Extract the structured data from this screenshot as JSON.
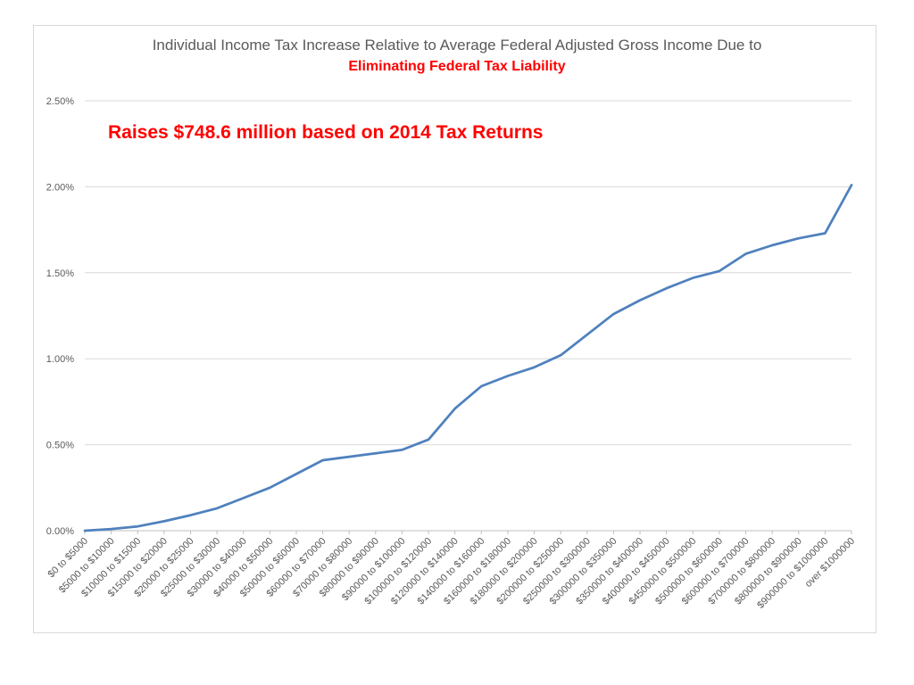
{
  "chart_data": {
    "type": "line",
    "title": "Individual Income Tax Increase Relative to Average Federal Adjusted Gross Income Due to",
    "subtitle": "Eliminating Federal Tax Liability",
    "annotation": "Raises $748.6 million based on 2014 Tax Returns",
    "xlabel": "",
    "ylabel": "",
    "ylim": [
      0,
      0.025
    ],
    "yticks": [
      {
        "value": 0.0,
        "label": "0.00%"
      },
      {
        "value": 0.005,
        "label": "0.50%"
      },
      {
        "value": 0.01,
        "label": "1.00%"
      },
      {
        "value": 0.015,
        "label": "1.50%"
      },
      {
        "value": 0.02,
        "label": "2.00%"
      },
      {
        "value": 0.025,
        "label": "2.50%"
      }
    ],
    "grid": true,
    "legend": "none",
    "series_color": "#4f81bd",
    "categories": [
      "$0 to $5000",
      "$5000 to $10000",
      "$10000 to $15000",
      "$15000 to $20000",
      "$20000 to $25000",
      "$25000 to $30000",
      "$30000 to $40000",
      "$40000 to $50000",
      "$50000 to $60000",
      "$60000 to $70000",
      "$70000 to $80000",
      "$80000 to $90000",
      "$90000 to $100000",
      "$100000 to $120000",
      "$120000 to $140000",
      "$140000 to $160000",
      "$160000 to $180000",
      "$180000 to $200000",
      "$200000 to $250000",
      "$250000 to $300000",
      "$300000 to $350000",
      "$350000 to $400000",
      "$400000 to $450000",
      "$450000 to $500000",
      "$500000 to $600000",
      "$600000 to $700000",
      "$700000 to $800000",
      "$800000 to $900000",
      "$900000 to $1000000",
      "over $1000000"
    ],
    "values": [
      0.0,
      0.0001,
      0.00025,
      0.00055,
      0.0009,
      0.0013,
      0.0019,
      0.0025,
      0.0033,
      0.0041,
      0.0043,
      0.0045,
      0.0047,
      0.0053,
      0.0071,
      0.0084,
      0.009,
      0.0095,
      0.0102,
      0.0114,
      0.0126,
      0.0134,
      0.0141,
      0.0147,
      0.0151,
      0.0161,
      0.0166,
      0.017,
      0.0173,
      0.0201
    ]
  }
}
